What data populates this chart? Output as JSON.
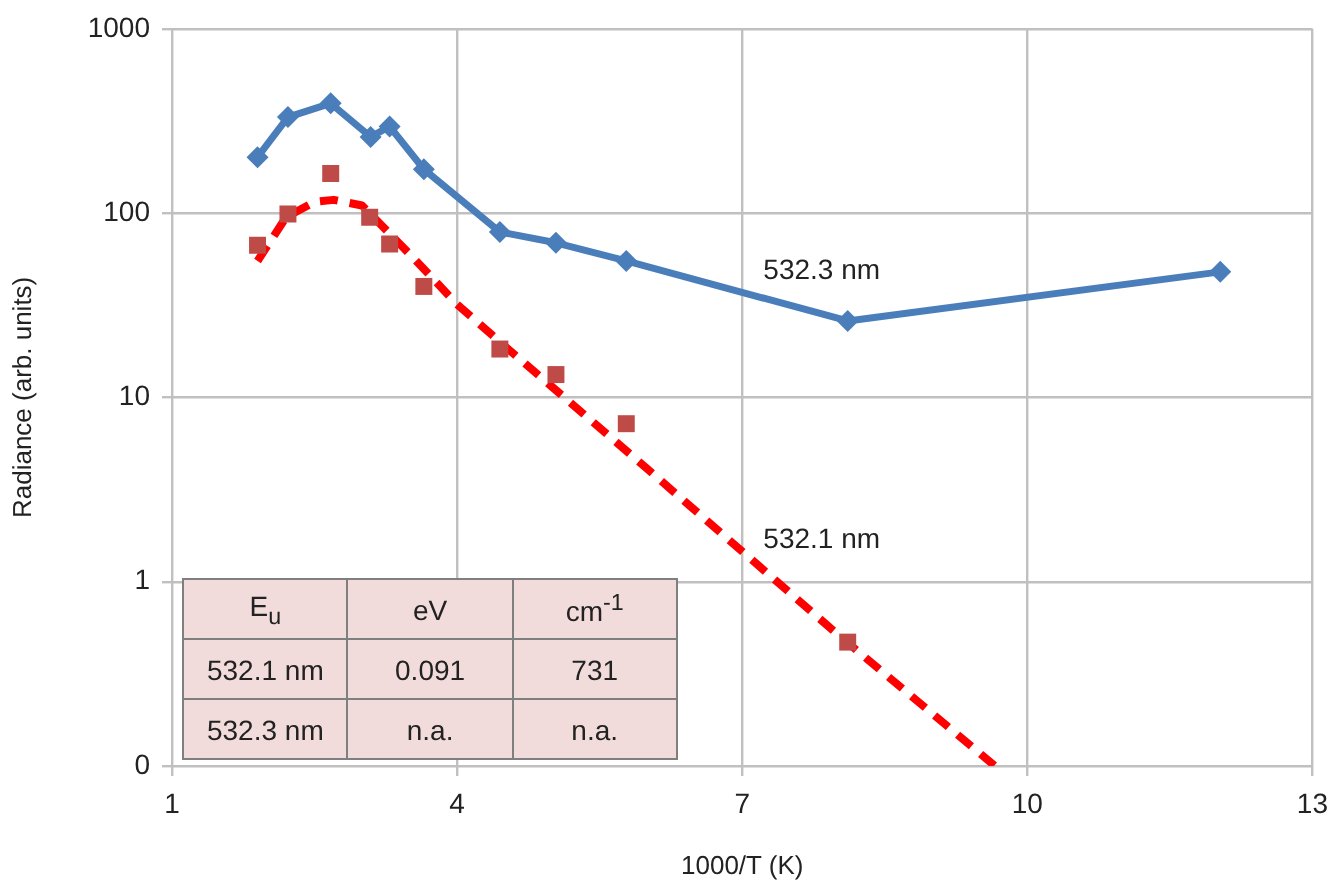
{
  "chart_data": {
    "type": "line",
    "xlabel": "1000/T (K)",
    "ylabel": "Radiance (arb. units)",
    "xlim": [
      1,
      13
    ],
    "xticks": [
      1,
      4,
      7,
      10,
      13
    ],
    "ylim": [
      0.1,
      1000
    ],
    "yticks": [
      {
        "value": 0.1,
        "label": "0"
      },
      1,
      10,
      100,
      1000
    ],
    "log": "y",
    "grid": true,
    "annotations": [
      "E$_{u}$",
      "eV",
      "cm$^{-1}$",
      "532.1 nm",
      "0.091",
      "731",
      "532.3 nm",
      "n.a.",
      "n.a."
    ],
    "series": [
      {
        "name": "532.3 nm",
        "type": "line",
        "color": "#4a7ebb",
        "marker": "diamond",
        "line_style": "solid",
        "x": [
          1.9,
          2.22,
          2.67,
          3.09,
          3.29,
          3.65,
          4.45,
          5.04,
          5.78,
          8.11,
          12.03
        ],
        "values": [
          201,
          332,
          394,
          259,
          295,
          173,
          79,
          69,
          55,
          26,
          48
        ]
      },
      {
        "type": "scatter",
        "color": "#be4b48",
        "marker": "square",
        "x": [
          1.9,
          2.22,
          2.67,
          3.08,
          3.29,
          3.65,
          4.45,
          5.04,
          5.78,
          8.11
        ],
        "values": [
          67,
          99,
          164,
          95,
          68,
          40,
          18.3,
          13.3,
          7.2,
          0.47
        ]
      },
      {
        "name": "532.1 nm",
        "type": "line",
        "color": "#ff0000",
        "marker": "none",
        "line_style": "dashed",
        "x": [
          1.9,
          2.2,
          2.5,
          2.7,
          3.0,
          3.5,
          4.0,
          4.5,
          6.0,
          8.0,
          9.66
        ],
        "values": [
          55,
          95,
          115,
          118,
          110,
          60,
          32,
          19,
          4.1,
          0.52,
          0.1
        ]
      }
    ]
  }
}
